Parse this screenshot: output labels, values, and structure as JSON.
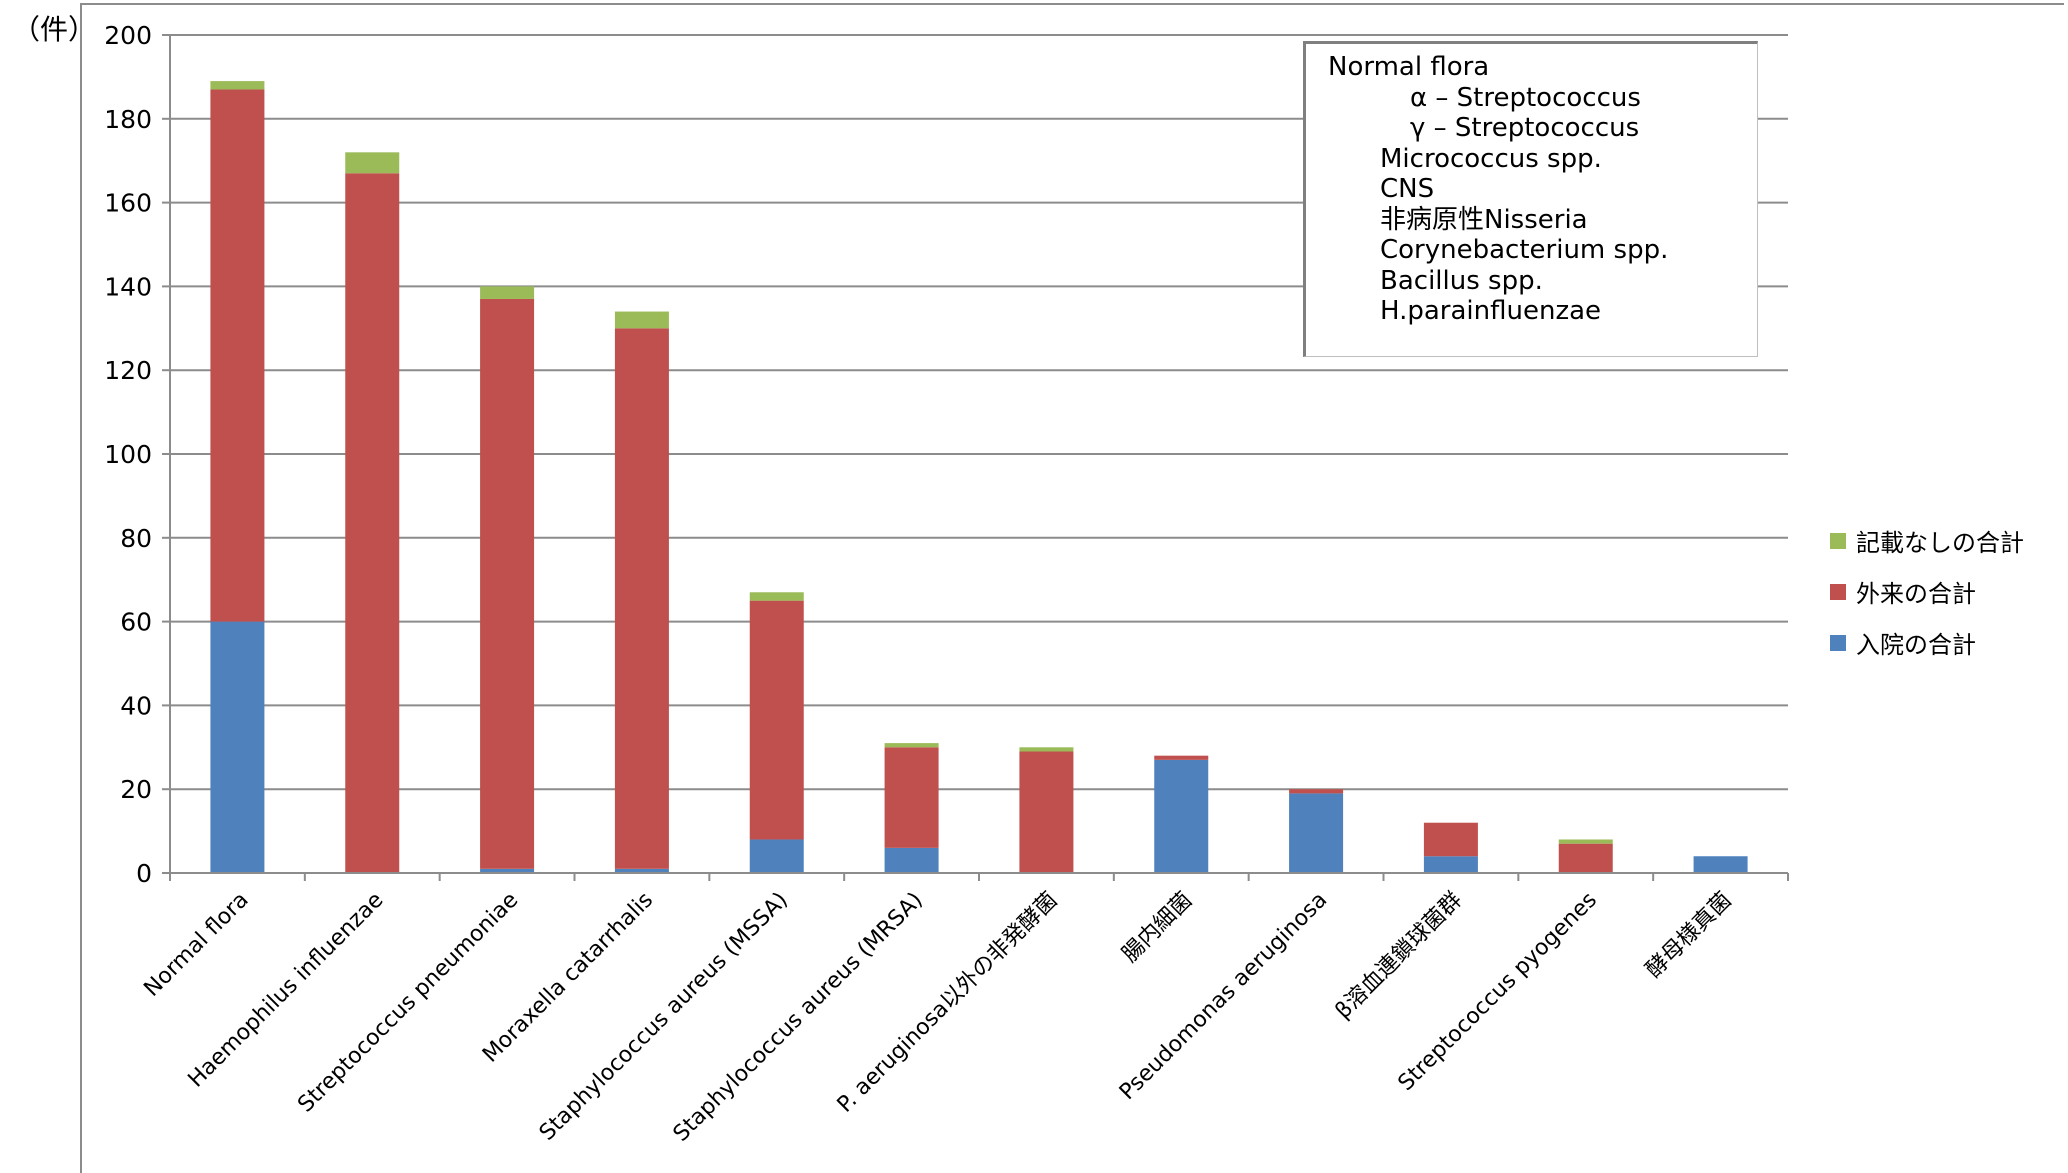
{
  "unit_label": "（件）",
  "annotation": {
    "title": "Normal flora",
    "items": [
      "α – Streptococcus",
      "γ – Streptococcus",
      "Micrococcus spp.",
      "CNS",
      "非病原性Nisseria",
      "Corynebacterium spp.",
      "Bacillus spp.",
      "H.parainfluenzae"
    ]
  },
  "colors": {
    "inpatient": "#4f81bd",
    "outpatient": "#c0504d",
    "unrecorded": "#9bbb59",
    "gridline": "#8c8c8c",
    "axis": "#8c8c8c"
  },
  "chart_data": {
    "type": "bar",
    "stacked": true,
    "title": "",
    "xlabel": "",
    "ylabel": "",
    "ylim": [
      0,
      200
    ],
    "yticks": [
      0,
      20,
      40,
      60,
      80,
      100,
      120,
      140,
      160,
      180,
      200
    ],
    "grid": true,
    "legend_position": "right",
    "categories": [
      "Normal flora",
      "Haemophilus influenzae",
      "Streptococcus pneumoniae",
      "Moraxella catarrhalis",
      "Staphylococcus aureus (MSSA)",
      "Staphylococcus aureus (MRSA)",
      "P. aeruginosa以外の非発酵菌",
      "腸内細菌",
      "Pseudomonas aeruginosa",
      "β溶血連鎖球菌群",
      "Streptococcus pyogenes",
      "酵母様真菌"
    ],
    "series": [
      {
        "name": "入院の合計",
        "color": "#4f81bd",
        "values": [
          60,
          0,
          1,
          1,
          8,
          6,
          0,
          27,
          19,
          4,
          0,
          4
        ]
      },
      {
        "name": "外来の合計",
        "color": "#c0504d",
        "values": [
          127,
          167,
          136,
          129,
          57,
          24,
          29,
          1,
          1,
          8,
          7,
          0
        ]
      },
      {
        "name": "記載なしの合計",
        "color": "#9bbb59",
        "values": [
          2,
          5,
          3,
          4,
          2,
          1,
          1,
          0,
          0,
          0,
          1,
          0
        ]
      }
    ],
    "legend_order": [
      "記載なしの合計",
      "外来の合計",
      "入院の合計"
    ]
  }
}
